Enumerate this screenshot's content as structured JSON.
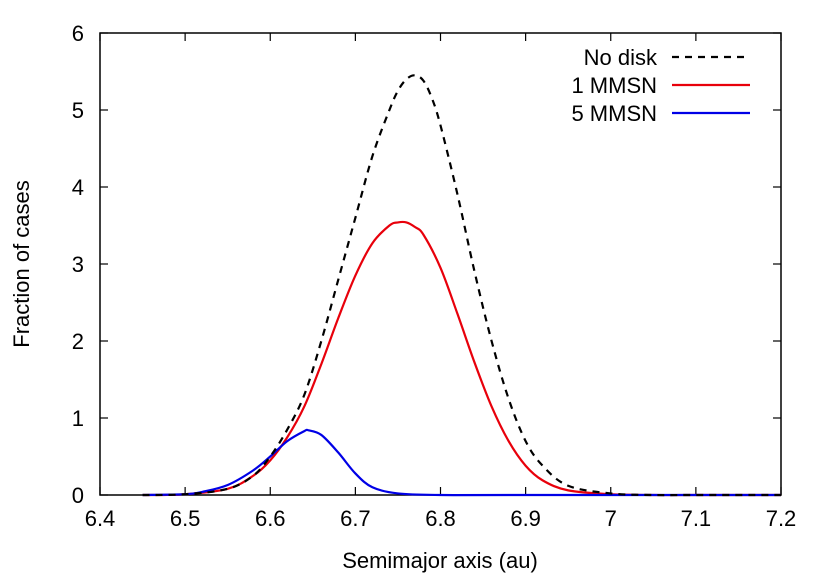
{
  "chart_data": {
    "type": "line",
    "title": "",
    "xlabel": "Semimajor axis (au)",
    "ylabel": "Fraction of cases",
    "xlim": [
      6.4,
      7.2
    ],
    "ylim": [
      0,
      6
    ],
    "xticks": [
      6.4,
      6.5,
      6.6,
      6.7,
      6.8,
      6.9,
      7.0,
      7.1,
      7.2
    ],
    "xtick_labels": [
      "6.4",
      "6.5",
      "6.6",
      "6.7",
      "6.8",
      "6.9",
      "7",
      "7.1",
      "7.2"
    ],
    "yticks": [
      0,
      1,
      2,
      3,
      4,
      5,
      6
    ],
    "ytick_labels": [
      "0",
      "1",
      "2",
      "3",
      "4",
      "5",
      "6"
    ],
    "grid": false,
    "legend_position": "top-right",
    "series": [
      {
        "name": "No disk",
        "color": "#000000",
        "dash": "dashed",
        "x": [
          6.45,
          6.5,
          6.55,
          6.58,
          6.6,
          6.62,
          6.64,
          6.66,
          6.68,
          6.7,
          6.72,
          6.74,
          6.75,
          6.76,
          6.77,
          6.78,
          6.79,
          6.8,
          6.82,
          6.84,
          6.86,
          6.88,
          6.9,
          6.92,
          6.95,
          7.0,
          7.05,
          7.1,
          7.2
        ],
        "y": [
          0.0,
          0.01,
          0.08,
          0.25,
          0.5,
          0.85,
          1.3,
          2.0,
          2.8,
          3.6,
          4.4,
          5.0,
          5.25,
          5.4,
          5.45,
          5.38,
          5.15,
          4.8,
          3.9,
          2.9,
          2.0,
          1.25,
          0.7,
          0.38,
          0.12,
          0.02,
          0.0,
          0.0,
          0.0
        ]
      },
      {
        "name": "1 MMSN",
        "color": "#e8000b",
        "dash": "solid",
        "x": [
          6.45,
          6.5,
          6.55,
          6.58,
          6.6,
          6.62,
          6.64,
          6.66,
          6.68,
          6.7,
          6.72,
          6.74,
          6.75,
          6.76,
          6.77,
          6.78,
          6.8,
          6.82,
          6.84,
          6.86,
          6.88,
          6.9,
          6.92,
          6.95,
          7.0,
          7.05,
          7.1,
          7.2
        ],
        "y": [
          0.0,
          0.01,
          0.08,
          0.25,
          0.45,
          0.75,
          1.15,
          1.7,
          2.3,
          2.85,
          3.27,
          3.5,
          3.54,
          3.54,
          3.48,
          3.38,
          2.95,
          2.35,
          1.72,
          1.15,
          0.7,
          0.38,
          0.19,
          0.06,
          0.01,
          0.0,
          0.0,
          0.0
        ]
      },
      {
        "name": "5 MMSN",
        "color": "#0000e6",
        "dash": "solid",
        "x": [
          6.45,
          6.5,
          6.52,
          6.55,
          6.58,
          6.6,
          6.62,
          6.64,
          6.645,
          6.66,
          6.68,
          6.7,
          6.72,
          6.75,
          6.8,
          6.9,
          7.2
        ],
        "y": [
          0.0,
          0.01,
          0.04,
          0.13,
          0.32,
          0.5,
          0.7,
          0.83,
          0.84,
          0.78,
          0.55,
          0.28,
          0.1,
          0.02,
          0.0,
          0.0,
          0.0
        ]
      }
    ]
  }
}
